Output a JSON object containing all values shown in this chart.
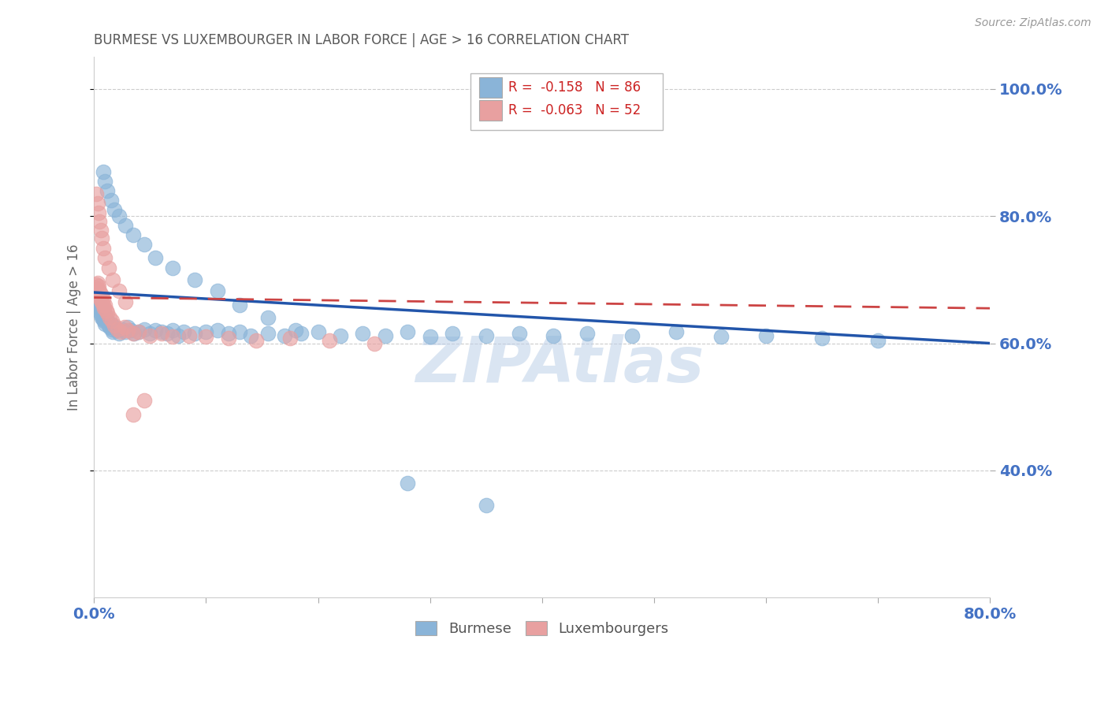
{
  "title": "BURMESE VS LUXEMBOURGER IN LABOR FORCE | AGE > 16 CORRELATION CHART",
  "source": "Source: ZipAtlas.com",
  "ylabel": "In Labor Force | Age > 16",
  "xlim": [
    0.0,
    0.8
  ],
  "ylim": [
    0.2,
    1.05
  ],
  "ytick_positions": [
    0.4,
    0.6,
    0.8,
    1.0
  ],
  "ytick_labels": [
    "40.0%",
    "60.0%",
    "80.0%",
    "100.0%"
  ],
  "xtick_positions": [
    0.0,
    0.1,
    0.2,
    0.3,
    0.4,
    0.5,
    0.6,
    0.7,
    0.8
  ],
  "xtick_labels": [
    "0.0%",
    "",
    "",
    "",
    "",
    "",
    "",
    "",
    "80.0%"
  ],
  "burmese_color": "#8ab4d8",
  "luxembourger_color": "#e8a0a0",
  "burmese_line_color": "#2255aa",
  "luxembourger_line_color": "#cc4444",
  "legend_burmese_R": "-0.158",
  "legend_burmese_N": "86",
  "legend_luxembourger_R": "-0.063",
  "legend_luxembourger_N": "52",
  "watermark": "ZIPAtlas",
  "axis_label_color": "#4472c4",
  "title_color": "#595959",
  "burmese_line_x0": 0.0,
  "burmese_line_y0": 0.68,
  "burmese_line_x1": 0.8,
  "burmese_line_y1": 0.6,
  "luxembourger_line_x0": 0.0,
  "luxembourger_line_y0": 0.672,
  "luxembourger_line_x1": 0.8,
  "luxembourger_line_y1": 0.655,
  "burmese_x": [
    0.002,
    0.003,
    0.003,
    0.004,
    0.004,
    0.005,
    0.005,
    0.006,
    0.006,
    0.007,
    0.007,
    0.008,
    0.008,
    0.009,
    0.009,
    0.01,
    0.01,
    0.011,
    0.012,
    0.013,
    0.014,
    0.015,
    0.016,
    0.017,
    0.018,
    0.02,
    0.022,
    0.025,
    0.028,
    0.03,
    0.033,
    0.036,
    0.04,
    0.045,
    0.05,
    0.055,
    0.06,
    0.065,
    0.07,
    0.075,
    0.08,
    0.09,
    0.1,
    0.11,
    0.12,
    0.13,
    0.14,
    0.155,
    0.17,
    0.185,
    0.2,
    0.22,
    0.24,
    0.26,
    0.28,
    0.3,
    0.32,
    0.35,
    0.38,
    0.41,
    0.44,
    0.48,
    0.52,
    0.56,
    0.6,
    0.65,
    0.7,
    0.008,
    0.01,
    0.012,
    0.015,
    0.018,
    0.022,
    0.028,
    0.035,
    0.045,
    0.055,
    0.07,
    0.09,
    0.11,
    0.13,
    0.155,
    0.18,
    0.28,
    0.35
  ],
  "burmese_y": [
    0.665,
    0.66,
    0.672,
    0.655,
    0.668,
    0.65,
    0.662,
    0.645,
    0.658,
    0.64,
    0.652,
    0.638,
    0.648,
    0.635,
    0.642,
    0.63,
    0.645,
    0.638,
    0.635,
    0.628,
    0.625,
    0.63,
    0.622,
    0.618,
    0.625,
    0.62,
    0.615,
    0.622,
    0.618,
    0.625,
    0.62,
    0.615,
    0.618,
    0.622,
    0.615,
    0.62,
    0.618,
    0.615,
    0.62,
    0.612,
    0.618,
    0.615,
    0.618,
    0.62,
    0.615,
    0.618,
    0.612,
    0.615,
    0.612,
    0.615,
    0.618,
    0.612,
    0.615,
    0.612,
    0.618,
    0.61,
    0.615,
    0.612,
    0.615,
    0.612,
    0.615,
    0.612,
    0.618,
    0.61,
    0.612,
    0.608,
    0.605,
    0.87,
    0.855,
    0.84,
    0.825,
    0.81,
    0.8,
    0.785,
    0.77,
    0.755,
    0.735,
    0.718,
    0.7,
    0.682,
    0.66,
    0.64,
    0.62,
    0.38,
    0.345
  ],
  "luxembourger_x": [
    0.001,
    0.002,
    0.002,
    0.003,
    0.003,
    0.004,
    0.004,
    0.005,
    0.005,
    0.006,
    0.006,
    0.007,
    0.007,
    0.008,
    0.008,
    0.009,
    0.01,
    0.011,
    0.012,
    0.014,
    0.016,
    0.018,
    0.021,
    0.024,
    0.027,
    0.03,
    0.035,
    0.04,
    0.05,
    0.06,
    0.07,
    0.085,
    0.1,
    0.12,
    0.145,
    0.175,
    0.21,
    0.25,
    0.002,
    0.003,
    0.004,
    0.005,
    0.006,
    0.007,
    0.008,
    0.01,
    0.013,
    0.017,
    0.022,
    0.028,
    0.035,
    0.045
  ],
  "luxembourger_y": [
    0.688,
    0.692,
    0.68,
    0.685,
    0.695,
    0.678,
    0.69,
    0.672,
    0.682,
    0.668,
    0.678,
    0.665,
    0.675,
    0.66,
    0.67,
    0.655,
    0.66,
    0.652,
    0.648,
    0.64,
    0.635,
    0.628,
    0.622,
    0.618,
    0.625,
    0.62,
    0.615,
    0.618,
    0.612,
    0.615,
    0.61,
    0.612,
    0.61,
    0.608,
    0.605,
    0.608,
    0.605,
    0.6,
    0.835,
    0.82,
    0.805,
    0.792,
    0.778,
    0.765,
    0.75,
    0.735,
    0.718,
    0.7,
    0.682,
    0.665,
    0.488,
    0.51
  ]
}
